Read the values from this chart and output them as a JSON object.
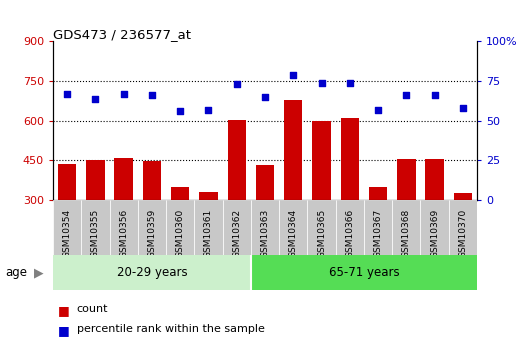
{
  "title": "GDS473 / 236577_at",
  "samples": [
    "GSM10354",
    "GSM10355",
    "GSM10356",
    "GSM10359",
    "GSM10360",
    "GSM10361",
    "GSM10362",
    "GSM10363",
    "GSM10364",
    "GSM10365",
    "GSM10366",
    "GSM10367",
    "GSM10368",
    "GSM10369",
    "GSM10370"
  ],
  "counts": [
    435,
    450,
    460,
    448,
    350,
    330,
    602,
    432,
    680,
    600,
    610,
    350,
    455,
    455,
    325
  ],
  "percentiles": [
    67,
    64,
    67,
    66,
    56,
    57,
    73,
    65,
    79,
    74,
    74,
    57,
    66,
    66,
    58
  ],
  "group1_label": "20-29 years",
  "group2_label": "65-71 years",
  "group1_count": 7,
  "group2_count": 8,
  "ylim_left": [
    300,
    900
  ],
  "ylim_right": [
    0,
    100
  ],
  "yticks_left": [
    300,
    450,
    600,
    750,
    900
  ],
  "yticks_right": [
    0,
    25,
    50,
    75,
    100
  ],
  "bar_color": "#cc0000",
  "dot_color": "#0000cc",
  "group1_bg": "#ccf0cc",
  "group2_bg": "#55dd55",
  "tick_bg": "#c8c8c8",
  "legend_count_label": "count",
  "legend_pct_label": "percentile rank within the sample",
  "age_label": "age",
  "grid_vals": [
    450,
    600,
    750
  ],
  "dot_pct_scale": [
    0,
    100
  ]
}
